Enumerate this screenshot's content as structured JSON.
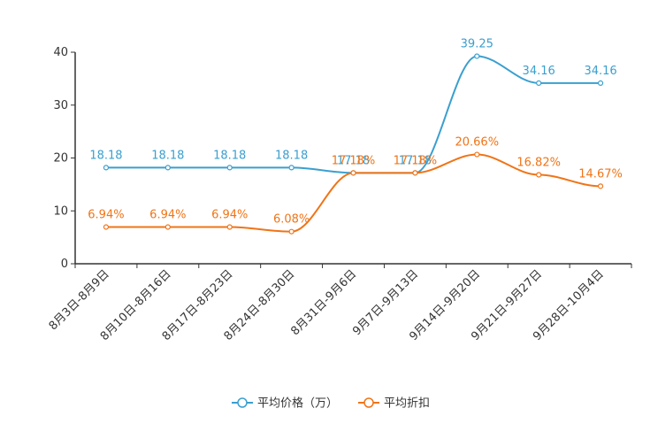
{
  "chart_data": {
    "type": "line",
    "title": "",
    "xlabel": "",
    "ylabel": "",
    "ylim": [
      0,
      40
    ],
    "yticks": [
      0,
      10,
      20,
      30,
      40
    ],
    "categories": [
      "8月3日-8月9日",
      "8月10日-8月16日",
      "8月17日-8月23日",
      "8月24日-8月30日",
      "8月31日-9月6日",
      "9月7日-9月13日",
      "9月14日-9月20日",
      "9月21日-9月27日",
      "9月28日-10月4日"
    ],
    "series": [
      {
        "name": "平均价格（万）",
        "color": "#3a9fcf",
        "values": [
          18.18,
          18.18,
          18.18,
          18.18,
          17.18,
          17.18,
          39.25,
          34.16,
          34.16
        ],
        "labels": [
          "18.18",
          "18.18",
          "18.18",
          "18.18",
          "17.18",
          "17.18",
          "39.25",
          "34.16",
          "34.16"
        ]
      },
      {
        "name": "平均折扣",
        "color": "#f07417",
        "values": [
          6.94,
          6.94,
          6.94,
          6.08,
          17.18,
          17.18,
          20.66,
          16.82,
          14.67
        ],
        "labels": [
          "6.94%",
          "6.94%",
          "6.94%",
          "6.08%",
          "17.18%",
          "17.18%",
          "20.66%",
          "16.82%",
          "14.67%"
        ]
      }
    ],
    "legend_position": "bottom-center",
    "grid": false
  }
}
